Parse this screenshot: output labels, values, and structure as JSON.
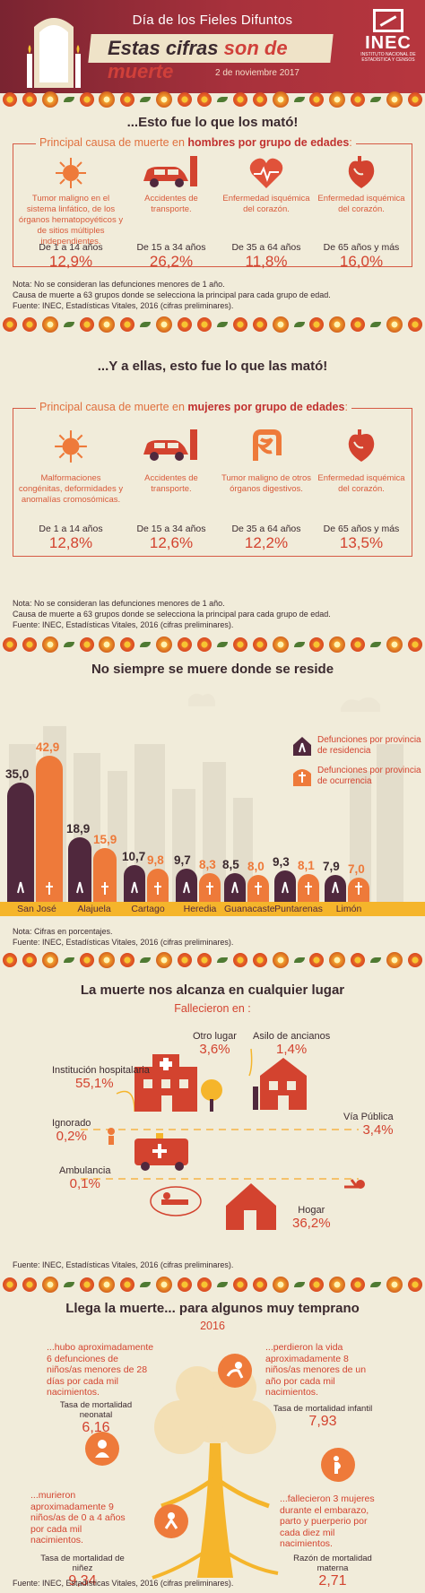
{
  "header": {
    "subtitle": "Día de los Fieles Difuntos",
    "title_part1": "Estas cifras",
    "title_part2": "son de muerte",
    "date": "2 de noviembre 2017",
    "logo_name": "INEC",
    "logo_small": "INSTITUTO NACIONAL DE ESTADÍSTICA Y CENSOS"
  },
  "men": {
    "title": "...Esto fue lo que los mató!",
    "label_pre": "Principal causa de muerte en",
    "label_bold": "hombres por grupo de edades",
    "label_post": ":",
    "items": [
      {
        "icon": "cell-icon",
        "desc": "Tumor maligno en el sistema linfático, de los órganos hematopoyéticos y de sitios múltiples independientes.",
        "age": "De 1 a 14 años",
        "pct": "12,9%"
      },
      {
        "icon": "car-crash-icon",
        "desc": "Accidentes de transporte.",
        "age": "De 15 a 34 años",
        "pct": "26,2%"
      },
      {
        "icon": "heart-pulse-icon",
        "desc": "Enfermedad isquémica del corazón.",
        "age": "De 35 a 64 años",
        "pct": "11,8%"
      },
      {
        "icon": "heart-icon",
        "desc": "Enfermedad isquémica del corazón.",
        "age": "De 65 años y más",
        "pct": "16,0%"
      }
    ],
    "notes": [
      "Nota: No se consideran las defunciones menores de 1 año.",
      "Causa de muerte a 63 grupos donde se selecciona la principal para cada grupo de edad.",
      "Fuente: INEC, Estadísticas Vitales, 2016 (cifras preliminares)."
    ]
  },
  "women": {
    "title": "...Y a ellas, esto fue lo que las mató!",
    "label_pre": "Principal causa de muerte en",
    "label_bold": "mujeres por grupo de edades",
    "label_post": ":",
    "items": [
      {
        "icon": "cell-icon",
        "desc": "Malformaciones congénitas, deformidades y anomalías cromosómicas.",
        "age": "De 1 a 14 años",
        "pct": "12,8%"
      },
      {
        "icon": "car-crash-icon",
        "desc": "Accidentes de transporte.",
        "age": "De 15 a 34 años",
        "pct": "12,6%"
      },
      {
        "icon": "intestine-icon",
        "desc": "Tumor maligno de otros órganos digestivos.",
        "age": "De 35 a 64 años",
        "pct": "12,2%"
      },
      {
        "icon": "heart-icon",
        "desc": "Enfermedad isquémica del corazón.",
        "age": "De 65 años y más",
        "pct": "13,5%"
      }
    ],
    "notes": [
      "Nota: No se consideran las defunciones menores de 1 año.",
      "Causa de muerte a 63 grupos donde se selecciona la principal para cada grupo de edad.",
      "Fuente: INEC, Estadísticas Vitales, 2016 (cifras preliminares)."
    ]
  },
  "residence": {
    "title": "No siempre se muere donde se reside",
    "legend_res": "Defunciones por provincia de residencia",
    "legend_occ": "Defunciones por provincia de ocurrencia",
    "notes": [
      "Nota: Cifras en porcentajes.",
      "Fuente: INEC, Estadísticas Vitales, 2016 (cifras preliminares)."
    ]
  },
  "chart_data": {
    "type": "bar",
    "categories": [
      "San José",
      "Alajuela",
      "Cartago",
      "Heredia",
      "Guanacaste",
      "Puntarenas",
      "Limón"
    ],
    "series": [
      {
        "name": "Defunciones por provincia de residencia",
        "values": [
          35.0,
          18.9,
          10.7,
          9.7,
          8.5,
          9.3,
          7.9
        ],
        "labels": [
          "35,0",
          "18,9",
          "10,7",
          "9,7",
          "8,5",
          "9,3",
          "7,9"
        ],
        "color": "#50283d"
      },
      {
        "name": "Defunciones por provincia de ocurrencia",
        "values": [
          42.9,
          15.9,
          9.8,
          8.3,
          8.0,
          8.1,
          7.0
        ],
        "labels": [
          "42,9",
          "15,9",
          "9,8",
          "8,3",
          "8,0",
          "8,1",
          "7,0"
        ],
        "color": "#ee7a3a"
      }
    ],
    "title": "No siempre se muere donde se reside",
    "xlabel": "",
    "ylabel": ""
  },
  "places": {
    "title": "La muerte nos alcanza en cualquier lugar",
    "subtitle": "Fallecieron en :",
    "items": [
      {
        "label": "Otro lugar",
        "pct": "3,6%"
      },
      {
        "label": "Asilo de ancianos",
        "pct": "1,4%"
      },
      {
        "label": "Institución hospitalaria",
        "pct": "55,1%"
      },
      {
        "label": "Ignorado",
        "pct": "0,2%"
      },
      {
        "label": "Vía Pública",
        "pct": "3,4%"
      },
      {
        "label": "Ambulancia",
        "pct": "0,1%"
      },
      {
        "label": "Hogar",
        "pct": "36,2%"
      }
    ],
    "source": "Fuente: INEC, Estadísticas Vitales, 2016 (cifras preliminares)."
  },
  "infant": {
    "title": "Llega la muerte... para algunos muy temprano",
    "year": "2016",
    "items": [
      {
        "text": "...hubo aproximadamente 6 defunciones de niños/as menores de 28 días por cada mil nacimientos.",
        "label": "Tasa de mortalidad neonatal",
        "value": "6,16"
      },
      {
        "text": "...perdieron la vida aproximadamente 8 niños/as menores de un año por cada mil nacimientos.",
        "label": "Tasa de mortalidad infantil",
        "value": "7,93"
      },
      {
        "text": "...murieron aproximadamente 9 niños/as de 0 a 4 años por cada mil nacimientos.",
        "label": "Tasa de mortalidad de niñez",
        "value": "9,34"
      },
      {
        "text": "...fallecieron 3 mujeres durante el embarazo, parto y puerperio por cada diez mil nacimientos.",
        "label": "Razón de mortalidad materna",
        "value": "2,71"
      }
    ],
    "source": "Fuente: INEC, Estadísticas Vitales, 2016 (cifras preliminares)."
  },
  "colors": {
    "accent": "#d3432f",
    "dark": "#50283d",
    "orange": "#ee7a3a",
    "bg": "#f1ecda"
  }
}
